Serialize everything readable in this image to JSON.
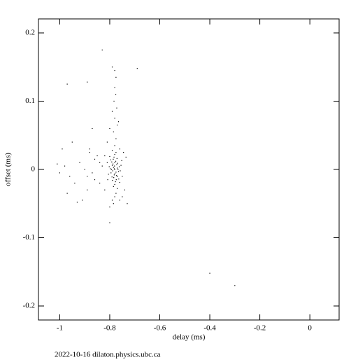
{
  "chart_data": {
    "type": "scatter",
    "xlabel": "delay (ms)",
    "ylabel": "offset (ms)",
    "footer": "2022-10-16  dilaton.physics.ubc.ca",
    "color": "#000000",
    "xlim": [
      -1.085,
      0.117
    ],
    "xticks": [
      -1,
      -0.8,
      -0.6,
      -0.4,
      -0.2,
      0
    ],
    "ylim": [
      -0.2205,
      0.2205
    ],
    "yticks": [
      -0.2,
      -0.1,
      0,
      0.1,
      0.2
    ],
    "x": [
      -0.78,
      -0.785,
      -0.775,
      -0.79,
      -0.77,
      -0.782,
      -0.788,
      -0.772,
      -0.795,
      -0.765,
      -0.78,
      -0.784,
      -0.776,
      -0.792,
      -0.768,
      -0.798,
      -0.762,
      -0.786,
      -0.774,
      -0.781,
      -0.779,
      -0.787,
      -0.773,
      -0.791,
      -0.769,
      -0.802,
      -0.758,
      -0.783,
      -0.777,
      -0.796,
      -0.764,
      -0.789,
      -0.771,
      -0.805,
      -0.755,
      -0.78,
      -0.78,
      -0.8,
      -0.76,
      -0.793,
      -0.767,
      -0.785,
      -0.775,
      -0.81,
      -0.75,
      -0.808,
      -0.752,
      -0.79,
      -0.77,
      -0.782,
      -0.78,
      -0.775,
      -0.785,
      -0.77,
      -0.78,
      -0.79,
      -0.772,
      -0.783,
      -0.776,
      -0.78,
      -0.775,
      -0.78,
      -0.79,
      -0.765,
      -0.8,
      -0.76,
      -0.745,
      -0.735,
      -0.74,
      -0.73,
      -0.78,
      -0.785,
      -0.775,
      -0.79,
      -0.8,
      -0.8,
      -0.76,
      -0.75,
      -0.82,
      -0.81,
      -0.85,
      -0.86,
      -0.88,
      -0.87,
      -0.89,
      -0.9,
      -0.92,
      -0.94,
      -0.96,
      -0.98,
      -1.0,
      -1.01,
      -0.99,
      -0.97,
      -0.93,
      -0.91,
      -0.84,
      -0.83,
      -0.86,
      -0.88,
      -0.95,
      -0.87,
      -0.89,
      -0.82,
      -0.84,
      -0.4,
      -0.3,
      -0.69,
      -0.83,
      -0.97,
      -0.89
    ],
    "y": [
      0,
      0.003,
      -0.004,
      0.006,
      0.002,
      -0.008,
      -0.002,
      0.007,
      -0.005,
      -0.003,
      0.01,
      -0.012,
      0.012,
      0.011,
      -0.01,
      0.001,
      0.004,
      0.015,
      -0.015,
      0.005,
      -0.006,
      0.008,
      -0.009,
      -0.011,
      0.009,
      0.004,
      -0.002,
      0.018,
      -0.018,
      0.014,
      -0.014,
      -0.016,
      0.016,
      -0.007,
      0.006,
      0.022,
      -0.022,
      0.019,
      -0.019,
      0.0,
      0.0,
      -0.025,
      0.025,
      0.01,
      -0.01,
      -0.015,
      0.013,
      0.028,
      -0.028,
      0.001,
      0.035,
      0.045,
      0.055,
      0.065,
      0.075,
      0.085,
      0.09,
      0.1,
      0.11,
      0.12,
      0.135,
      0.145,
      0.15,
      0.07,
      0.06,
      0.03,
      0.025,
      0.018,
      -0.03,
      -0.05,
      -0.04,
      -0.05,
      -0.035,
      -0.045,
      -0.055,
      -0.078,
      -0.045,
      -0.04,
      -0.03,
      0.04,
      0.02,
      0.015,
      0.025,
      -0.005,
      -0.01,
      0.0,
      0.01,
      -0.02,
      -0.01,
      0.005,
      -0.005,
      0.008,
      0.03,
      -0.035,
      -0.048,
      -0.045,
      -0.02,
      0.005,
      -0.015,
      0.03,
      0.04,
      0.06,
      -0.03,
      0.02,
      0.01,
      -0.152,
      -0.17,
      0.148,
      0.175,
      0.125,
      0.128
    ]
  }
}
